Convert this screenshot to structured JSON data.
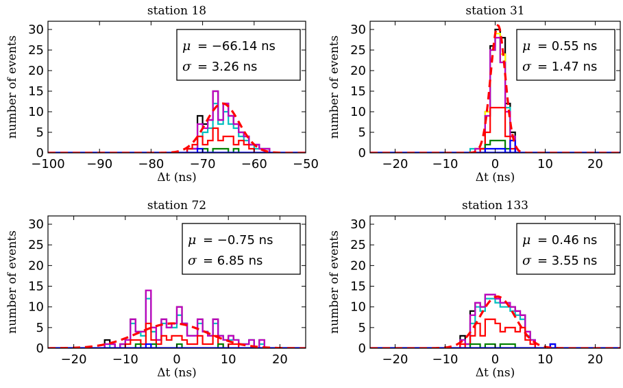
{
  "chart_data": [
    {
      "type": "histogram",
      "title": "station 18",
      "xlabel": "Δt (ns)",
      "ylabel": "number of events",
      "xlim": [
        -100,
        -50
      ],
      "ylim": [
        0,
        32
      ],
      "xticks": [
        "−100",
        "−90",
        "−80",
        "−70",
        "−60",
        "−50"
      ],
      "xtick_values": [
        -100,
        -90,
        -80,
        -70,
        -60,
        -50
      ],
      "yticks": [
        "0",
        "5",
        "10",
        "15",
        "20",
        "25",
        "30"
      ],
      "ytick_values": [
        0,
        5,
        10,
        15,
        20,
        25,
        30
      ],
      "stats": {
        "mu_sym": "μ",
        "mu": "= −66.14 ns",
        "sigma_sym": "σ",
        "sigma": "= 3.26 ns"
      },
      "bin_edges": [
        -76,
        -75,
        -74,
        -73,
        -72,
        -71,
        -70,
        -69,
        -68,
        -67,
        -66,
        -65,
        -64,
        -63,
        -62,
        -61,
        -60,
        -59,
        -58,
        -57
      ],
      "series": [
        {
          "color": "#000000",
          "values": [
            0,
            0,
            0,
            1,
            1,
            9,
            7,
            8,
            15,
            8,
            12,
            9,
            7,
            5,
            4,
            2,
            2,
            1,
            1
          ]
        },
        {
          "color": "#00bfbf",
          "values": [
            0,
            0,
            0,
            1,
            1,
            4,
            5,
            6,
            12,
            7,
            10,
            7,
            6,
            4,
            3,
            2,
            1,
            1,
            1
          ]
        },
        {
          "color": "#bf00bf",
          "values": [
            0,
            0,
            0,
            1,
            1,
            7,
            6,
            8,
            15,
            8,
            12,
            9,
            7,
            5,
            4,
            2,
            2,
            1,
            1
          ]
        },
        {
          "color": "#ff0000",
          "values": [
            0,
            0,
            0,
            1,
            2,
            4,
            2,
            3,
            6,
            3,
            4,
            4,
            2,
            3,
            2,
            1,
            0,
            0,
            0
          ]
        },
        {
          "color": "#008000",
          "values": [
            0,
            0,
            0,
            0,
            0,
            0,
            1,
            0,
            1,
            1,
            1,
            0,
            1,
            0,
            0,
            0,
            0,
            0,
            0
          ]
        },
        {
          "color": "#0000ff",
          "values": [
            0,
            0,
            0,
            0,
            0,
            1,
            0,
            0,
            0,
            0,
            0,
            0,
            0,
            0,
            0,
            0,
            0,
            0,
            0
          ]
        }
      ],
      "fit": {
        "color": "#ff0000",
        "mu": -66.14,
        "sigma": 3.26,
        "amp": 12
      }
    },
    {
      "type": "histogram",
      "title": "station 31",
      "xlabel": "Δt (ns)",
      "ylabel": "number of events",
      "xlim": [
        -25,
        25
      ],
      "ylim": [
        0,
        32
      ],
      "xticks": [
        "−20",
        "−10",
        "0",
        "10",
        "20"
      ],
      "xtick_values": [
        -20,
        -10,
        0,
        10,
        20
      ],
      "yticks": [
        "0",
        "5",
        "10",
        "15",
        "20",
        "25",
        "30"
      ],
      "ytick_values": [
        0,
        5,
        10,
        15,
        20,
        25,
        30
      ],
      "stats": {
        "mu_sym": "μ",
        "mu": "= 0.55 ns",
        "sigma_sym": "σ",
        "sigma": "= 1.47 ns"
      },
      "bin_edges": [
        -6,
        -5,
        -4,
        -3,
        -2,
        -1,
        0,
        1,
        2,
        3,
        4,
        5
      ],
      "series": [
        {
          "color": "#000000",
          "values": [
            0,
            0,
            1,
            1,
            10,
            26,
            30,
            28,
            12,
            5,
            0
          ]
        },
        {
          "color": "#ffff00",
          "values": [
            0,
            0,
            1,
            1,
            10,
            25,
            29,
            24,
            11,
            4,
            0
          ]
        },
        {
          "color": "#00bfbf",
          "values": [
            0,
            1,
            0,
            1,
            9,
            25,
            28,
            22,
            11,
            4,
            0
          ]
        },
        {
          "color": "#bf00bf",
          "values": [
            0,
            0,
            1,
            1,
            9,
            25,
            28,
            22,
            10,
            4,
            0
          ]
        },
        {
          "color": "#ff0000",
          "values": [
            0,
            0,
            0,
            1,
            5,
            11,
            11,
            11,
            4,
            1,
            0
          ]
        },
        {
          "color": "#008000",
          "values": [
            0,
            0,
            0,
            0,
            2,
            3,
            3,
            3,
            1,
            0,
            0
          ]
        },
        {
          "color": "#0000ff",
          "values": [
            0,
            0,
            0,
            0,
            1,
            1,
            1,
            1,
            0,
            3,
            0
          ]
        }
      ],
      "fit": {
        "color": "#ff0000",
        "mu": 0.55,
        "sigma": 1.47,
        "amp": 31
      }
    },
    {
      "type": "histogram",
      "title": "station 72",
      "xlabel": "Δt (ns)",
      "ylabel": "number of events",
      "xlim": [
        -25,
        25
      ],
      "ylim": [
        0,
        32
      ],
      "xticks": [
        "−20",
        "−10",
        "0",
        "10",
        "20"
      ],
      "xtick_values": [
        -20,
        -10,
        0,
        10,
        20
      ],
      "yticks": [
        "0",
        "5",
        "10",
        "15",
        "20",
        "25",
        "30"
      ],
      "ytick_values": [
        0,
        5,
        10,
        15,
        20,
        25,
        30
      ],
      "stats": {
        "mu_sym": "μ",
        "mu": "= −0.75 ns",
        "sigma_sym": "σ",
        "sigma": "= 6.85 ns"
      },
      "bin_edges": [
        -15,
        -14,
        -13,
        -12,
        -11,
        -10,
        -9,
        -8,
        -7,
        -6,
        -5,
        -4,
        -3,
        -2,
        -1,
        0,
        1,
        2,
        3,
        4,
        5,
        6,
        7,
        8,
        9,
        10,
        11,
        12,
        13,
        14,
        15,
        16,
        17
      ],
      "series": [
        {
          "color": "#000000",
          "values": [
            0,
            2,
            1,
            0,
            1,
            2,
            7,
            4,
            4,
            14,
            5,
            2,
            7,
            5,
            6,
            10,
            6,
            3,
            3,
            7,
            4,
            3,
            7,
            3,
            2,
            3,
            2,
            1,
            1,
            2,
            0,
            2
          ]
        },
        {
          "color": "#00bfbf",
          "values": [
            0,
            1,
            0,
            0,
            1,
            2,
            6,
            4,
            3,
            12,
            4,
            2,
            6,
            5,
            5,
            8,
            6,
            3,
            3,
            6,
            4,
            3,
            6,
            3,
            2,
            2,
            2,
            1,
            1,
            2,
            0,
            1
          ]
        },
        {
          "color": "#bf00bf",
          "values": [
            0,
            1,
            1,
            0,
            1,
            2,
            7,
            4,
            4,
            14,
            5,
            2,
            7,
            5,
            6,
            10,
            6,
            3,
            3,
            7,
            4,
            3,
            7,
            3,
            2,
            3,
            2,
            1,
            1,
            2,
            0,
            2
          ]
        },
        {
          "color": "#ff0000",
          "values": [
            0,
            0,
            0,
            0,
            0,
            1,
            2,
            2,
            1,
            6,
            2,
            1,
            3,
            2,
            3,
            3,
            2,
            1,
            1,
            3,
            1,
            1,
            3,
            1,
            0,
            1,
            1,
            0,
            0,
            0,
            0,
            0
          ]
        },
        {
          "color": "#008000",
          "values": [
            0,
            0,
            0,
            0,
            0,
            0,
            0,
            1,
            0,
            0,
            1,
            0,
            0,
            0,
            0,
            1,
            0,
            0,
            0,
            0,
            0,
            0,
            0,
            1,
            0,
            0,
            0,
            0,
            0,
            0,
            0,
            0
          ]
        },
        {
          "color": "#0000ff",
          "values": [
            0,
            0,
            0,
            0,
            0,
            0,
            0,
            0,
            0,
            1,
            0,
            0,
            0,
            0,
            0,
            0,
            0,
            0,
            0,
            0,
            0,
            0,
            0,
            0,
            0,
            0,
            0,
            0,
            0,
            0,
            0,
            0
          ]
        }
      ],
      "fit": {
        "color": "#ff0000",
        "mu": -0.75,
        "sigma": 6.85,
        "amp": 6
      }
    },
    {
      "type": "histogram",
      "title": "station 133",
      "xlabel": "Δt (ns)",
      "ylabel": "number of events",
      "xlim": [
        -25,
        25
      ],
      "ylim": [
        0,
        32
      ],
      "xticks": [
        "−20",
        "−10",
        "0",
        "10",
        "20"
      ],
      "xtick_values": [
        -20,
        -10,
        0,
        10,
        20
      ],
      "yticks": [
        "0",
        "5",
        "10",
        "15",
        "20",
        "25",
        "30"
      ],
      "ytick_values": [
        0,
        5,
        10,
        15,
        20,
        25,
        30
      ],
      "stats": {
        "mu_sym": "μ",
        "mu": "= 0.46 ns",
        "sigma_sym": "σ",
        "sigma": "= 3.55 ns"
      },
      "bin_edges": [
        -8,
        -7,
        -6,
        -5,
        -4,
        -3,
        -2,
        -1,
        0,
        1,
        2,
        3,
        4,
        5,
        6,
        7,
        8,
        9,
        10,
        11,
        12
      ],
      "series": [
        {
          "color": "#000000",
          "values": [
            0,
            3,
            1,
            9,
            11,
            10,
            13,
            13,
            12,
            11,
            11,
            10,
            9,
            8,
            4,
            2,
            0,
            0,
            0,
            1
          ]
        },
        {
          "color": "#00bfbf",
          "values": [
            0,
            2,
            1,
            6,
            10,
            9,
            12,
            12,
            11,
            10,
            10,
            9,
            8,
            7,
            3,
            2,
            0,
            0,
            0,
            0
          ]
        },
        {
          "color": "#bf00bf",
          "values": [
            0,
            2,
            1,
            8,
            11,
            10,
            13,
            13,
            12,
            11,
            11,
            10,
            9,
            8,
            4,
            2,
            0,
            0,
            0,
            0
          ]
        },
        {
          "color": "#ff0000",
          "values": [
            0,
            1,
            0,
            3,
            6,
            3,
            7,
            7,
            6,
            4,
            5,
            5,
            4,
            5,
            2,
            1,
            0,
            0,
            0,
            0
          ]
        },
        {
          "color": "#008000",
          "values": [
            0,
            0,
            0,
            1,
            1,
            0,
            1,
            1,
            0,
            1,
            1,
            1,
            0,
            0,
            0,
            0,
            0,
            0,
            0,
            0
          ]
        },
        {
          "color": "#0000ff",
          "values": [
            0,
            0,
            0,
            0,
            0,
            0,
            0,
            0,
            0,
            0,
            0,
            0,
            0,
            0,
            0,
            0,
            0,
            0,
            0,
            1
          ]
        }
      ],
      "fit": {
        "color": "#ff0000",
        "mu": 0.46,
        "sigma": 3.55,
        "amp": 12.5
      }
    }
  ]
}
